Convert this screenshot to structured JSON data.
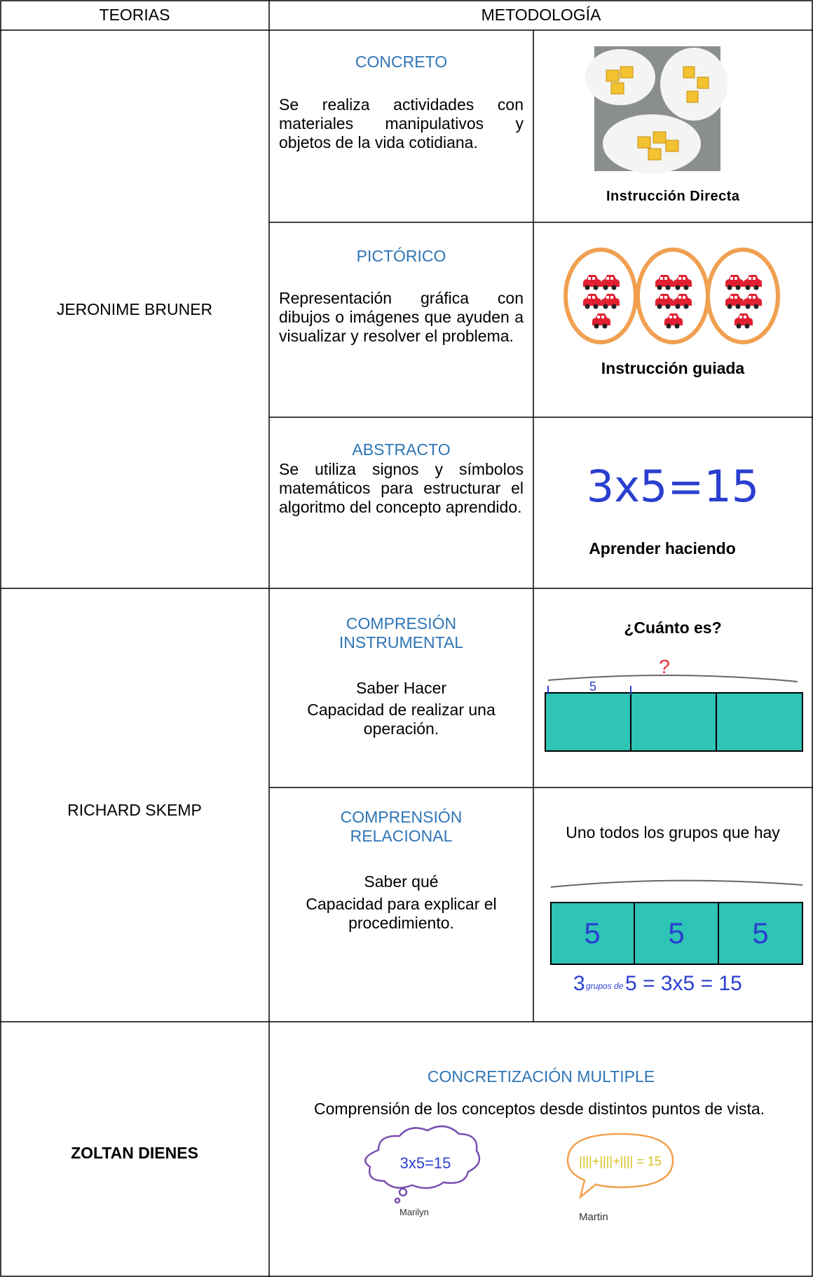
{
  "header": {
    "theories": "TEORIAS",
    "methodology": "METODOLOGÍA"
  },
  "rows": [
    {
      "theory": "JERONIME BRUNER",
      "sections": [
        {
          "title": "CONCRETO",
          "text": "Se realiza actividades con materiales manipulativos y objetos de la vida cotidiana.",
          "caption": "Instrucción Directa"
        },
        {
          "title": "PICTÓRICO",
          "text": "Representación gráfica con dibujos o imágenes que ayuden a visualizar y resolver el problema.",
          "caption": "Instrucción guiada"
        },
        {
          "title": "ABSTRACTO",
          "text": "Se utiliza signos y símbolos matemáticos para estructurar el algoritmo del concepto aprendido.",
          "image_text": "3x5=15",
          "caption": "Aprender haciendo"
        }
      ]
    },
    {
      "theory": "RICHARD SKEMP",
      "sections": [
        {
          "title": "COMPRESIÓN INSTRUMENTAL",
          "lines": [
            "Saber Hacer",
            "Capacidad de realizar una operación."
          ],
          "image": {
            "question": "¿Cuánto es?",
            "unknown": "?",
            "part": "5"
          }
        },
        {
          "title": "COMPRENSIÓN RELACIONAL",
          "lines": [
            "Saber qué",
            "Capacidad para explicar el procedimiento."
          ],
          "image": {
            "caption": "Uno todos los grupos que hay",
            "parts": [
              "5",
              "5",
              "5"
            ],
            "count": "3",
            "grouping": "grupos de",
            "equation": "5 = 3x5 = 15"
          }
        }
      ]
    },
    {
      "theory": "ZOLTAN DIENES",
      "sections": [
        {
          "title": "CONCRETIZACIÓN MULTIPLE",
          "text": "Comprensión de los conceptos desde distintos puntos de vista.",
          "bubbles": [
            {
              "text": "3x5=15",
              "name": "Marilyn"
            },
            {
              "text": "||||+||||+|||| = 15",
              "name": "Martin"
            }
          ]
        }
      ]
    }
  ]
}
